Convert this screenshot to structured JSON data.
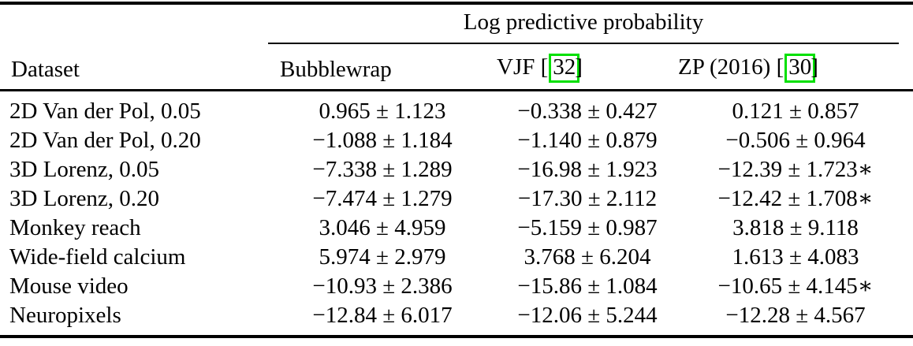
{
  "page": {
    "background_color": "#ffffff",
    "text_color": "#000000"
  },
  "table": {
    "title_header": "Log predictive probability",
    "citation_box_color": "#00e000",
    "columns": {
      "dataset_label": "Dataset",
      "bubblewrap_label": "Bubblewrap",
      "vjf_prefix": "VJF [",
      "vjf_cite": "32",
      "vjf_suffix": "]",
      "zp_prefix": "ZP (2016) [",
      "zp_cite": "30",
      "zp_suffix": "]"
    },
    "rows": [
      {
        "dataset": "2D Van der Pol, 0.05",
        "values": [
          "0.965 ± 1.123",
          "−0.338 ± 0.427",
          "0.121 ± 0.857"
        ]
      },
      {
        "dataset": "2D Van der Pol, 0.20",
        "values": [
          "−1.088 ± 1.184",
          "−1.140 ± 0.879",
          "−0.506 ± 0.964"
        ]
      },
      {
        "dataset": "3D Lorenz, 0.05",
        "values": [
          "−7.338 ± 1.289",
          "−16.98 ± 1.923",
          "−12.39 ± 1.723∗"
        ]
      },
      {
        "dataset": "3D Lorenz, 0.20",
        "values": [
          "−7.474 ± 1.279",
          "−17.30 ± 2.112",
          "−12.42 ± 1.708∗"
        ]
      },
      {
        "dataset": "Monkey reach",
        "values": [
          "3.046 ± 4.959",
          "−5.159 ± 0.987",
          "3.818 ± 9.118"
        ]
      },
      {
        "dataset": "Wide-field calcium",
        "values": [
          "5.974 ± 2.979",
          "3.768 ± 6.204",
          "1.613 ± 4.083"
        ]
      },
      {
        "dataset": "Mouse video",
        "values": [
          "−10.93 ± 2.386",
          "−15.86 ± 1.084",
          "−10.65 ± 4.145∗"
        ]
      },
      {
        "dataset": "Neuropixels",
        "values": [
          "−12.84 ± 6.017",
          "−12.06 ± 5.244",
          "−12.28 ± 4.567"
        ]
      }
    ]
  }
}
